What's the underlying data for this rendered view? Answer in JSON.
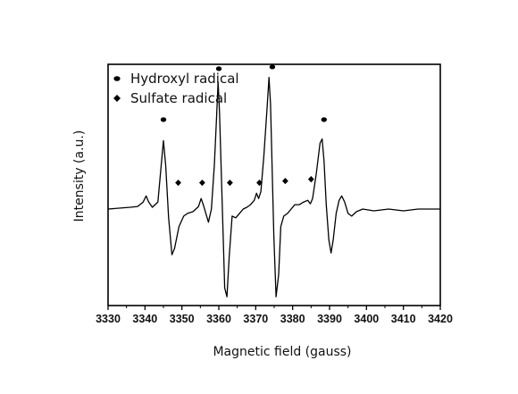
{
  "chart_data": {
    "type": "line",
    "xlabel": "Magnetic field (gauss)",
    "ylabel": "Intensity (a.u.)",
    "xlim": [
      3330,
      3420
    ],
    "ylim": [
      -1.1,
      1.65
    ],
    "x_ticks": [
      "3330",
      "3340",
      "3350",
      "3360",
      "3370",
      "3380",
      "3390",
      "3400",
      "3410",
      "3420"
    ],
    "grid": false,
    "legend_position": "top-left",
    "legend": [
      {
        "label": "Hydroxyl radical",
        "marker": "ellipse"
      },
      {
        "label": "Sulfate radical",
        "marker": "diamond"
      }
    ],
    "series": [
      {
        "x": [
          3330,
          3336,
          3338,
          3339.5,
          3340.3,
          3341,
          3342,
          3343.5,
          3344.4,
          3345,
          3345.6,
          3346.4,
          3347.3,
          3348,
          3349.2,
          3350.5,
          3351.5,
          3353,
          3354.5,
          3355.2,
          3355.8,
          3356.5,
          3357.2,
          3358,
          3358.8,
          3359.4,
          3359.8,
          3360.2,
          3360.9,
          3361.6,
          3362.2,
          3362.8,
          3363.6,
          3364.6,
          3365.6,
          3366.6,
          3367.6,
          3368.6,
          3369.6,
          3370.2,
          3370.8,
          3371.4,
          3372.2,
          3373,
          3373.6,
          3374,
          3374.4,
          3374.9,
          3375.5,
          3376.2,
          3376.8,
          3377.6,
          3378.6,
          3379.6,
          3380.6,
          3381.8,
          3383,
          3384.1,
          3384.8,
          3385.4,
          3386.4,
          3387.4,
          3388,
          3388.5,
          3389.1,
          3389.8,
          3390.4,
          3391,
          3391.8,
          3392.6,
          3393.3,
          3394.1,
          3395,
          3396,
          3397.3,
          3399,
          3402,
          3406,
          3410,
          3414,
          3420
        ],
        "y": [
          0.0,
          0.02,
          0.03,
          0.08,
          0.15,
          0.08,
          0.02,
          0.08,
          0.5,
          0.78,
          0.5,
          -0.1,
          -0.52,
          -0.45,
          -0.2,
          -0.08,
          -0.05,
          -0.03,
          0.03,
          0.12,
          0.05,
          -0.05,
          -0.15,
          0.0,
          0.5,
          1.05,
          1.45,
          1.1,
          0.1,
          -0.9,
          -1.0,
          -0.55,
          -0.08,
          -0.1,
          -0.05,
          0.0,
          0.02,
          0.05,
          0.1,
          0.18,
          0.12,
          0.2,
          0.6,
          1.1,
          1.5,
          1.2,
          0.55,
          -0.3,
          -1.0,
          -0.75,
          -0.2,
          -0.08,
          -0.05,
          0.0,
          0.05,
          0.05,
          0.08,
          0.1,
          0.06,
          0.12,
          0.4,
          0.75,
          0.8,
          0.55,
          0.05,
          -0.35,
          -0.5,
          -0.35,
          -0.05,
          0.1,
          0.15,
          0.08,
          -0.05,
          -0.08,
          -0.03,
          0.0,
          -0.02,
          0.0,
          -0.02,
          0.0,
          0.0
        ]
      }
    ],
    "markers": [
      {
        "series": "Hydroxyl radical",
        "shape": "ellipse",
        "x": [
          3345,
          3360,
          3374.5,
          3388.5
        ],
        "y": [
          1.02,
          1.6,
          1.62,
          1.02
        ]
      },
      {
        "series": "Sulfate radical",
        "shape": "diamond",
        "x": [
          3349,
          3355.5,
          3363,
          3371,
          3378,
          3385
        ],
        "y": [
          0.3,
          0.3,
          0.3,
          0.3,
          0.32,
          0.34
        ]
      }
    ]
  }
}
